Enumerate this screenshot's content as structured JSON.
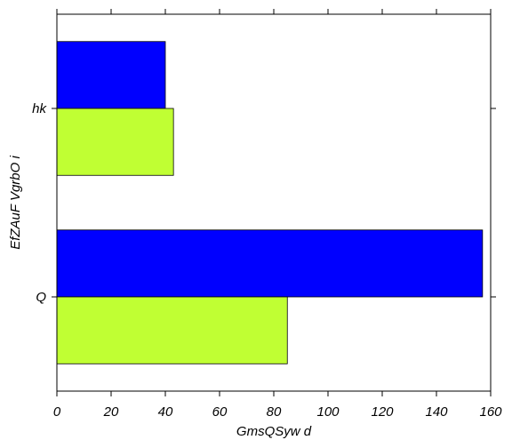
{
  "chart_data": {
    "type": "bar",
    "orientation": "horizontal",
    "title": "",
    "xlabel": "GmsQSyw  d",
    "ylabel": "EfZAuF VgrbO i",
    "categories": [
      "hk",
      "Q"
    ],
    "series": [
      {
        "color": "#0000ff",
        "values": [
          40,
          157
        ]
      },
      {
        "color": "#c0ff33",
        "values": [
          43,
          85
        ]
      }
    ],
    "xlim": [
      0,
      160
    ],
    "x_ticks": [
      0,
      20,
      40,
      60,
      80,
      100,
      120,
      140,
      160
    ],
    "grid": false,
    "legend": "none"
  }
}
